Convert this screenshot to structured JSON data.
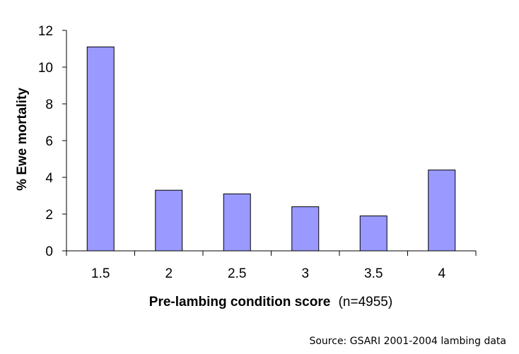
{
  "chart_data": {
    "type": "bar",
    "categories": [
      "1.5",
      "2",
      "2.5",
      "3",
      "3.5",
      "4"
    ],
    "values": [
      11.1,
      3.3,
      3.1,
      2.4,
      1.9,
      4.4
    ],
    "title": "",
    "xlabel": "Pre-lambing condition score",
    "xlabel_suffix": "(n=4955)",
    "ylabel": "% Ewe mortality",
    "ylim": [
      0,
      12
    ],
    "yticks": [
      "0",
      "2",
      "4",
      "6",
      "8",
      "10",
      "12"
    ],
    "grid": false,
    "legend": "none",
    "bar_color": "#9999ff",
    "bar_edge_color": "#000000"
  },
  "source_note": "Source: GSARI 2001-2004 lambing data"
}
